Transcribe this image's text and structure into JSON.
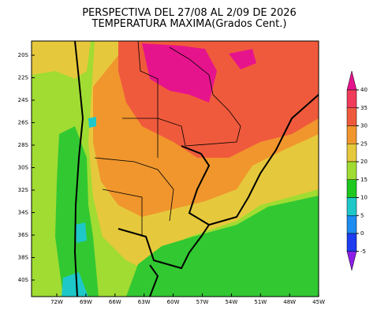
{
  "header": {
    "title": "PERSPECTIVA DEL 27/08 AL 2/09 DE 2026",
    "subtitle": "TEMPERATURA MAXIMA(Grados Cent.)"
  },
  "map": {
    "lat_labels": [
      "20S",
      "22S",
      "24S",
      "26S",
      "28S",
      "30S",
      "32S",
      "34S",
      "36S",
      "38S",
      "40S"
    ],
    "lon_labels": [
      "72W",
      "69W",
      "66W",
      "63W",
      "60W",
      "57W",
      "54W",
      "51W",
      "48W",
      "45W"
    ]
  },
  "colorbar": {
    "ticks": [
      40,
      35,
      30,
      25,
      20,
      15,
      10,
      5,
      0,
      -5
    ],
    "colors": [
      "#e6148c",
      "#f03c5a",
      "#f05a3c",
      "#f0962d",
      "#e6c83c",
      "#a0dc32",
      "#1ec81e",
      "#1ec8c8",
      "#1e8cf0",
      "#1e3cf0",
      "#8c1ee6"
    ]
  }
}
